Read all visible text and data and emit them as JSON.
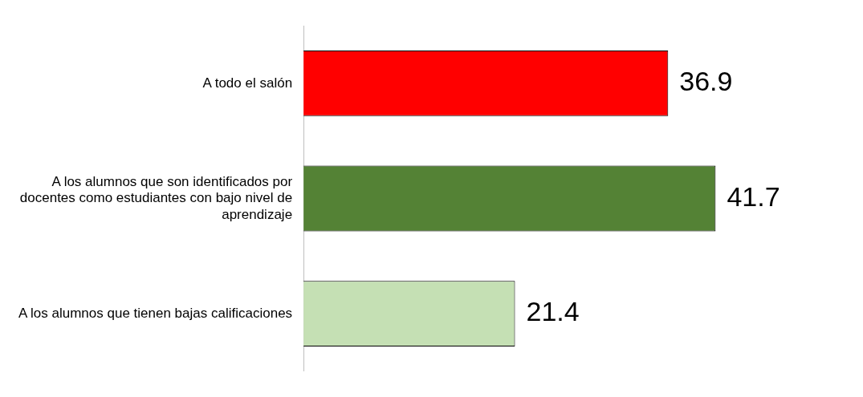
{
  "chart_data": {
    "type": "bar",
    "orientation": "horizontal",
    "categories": [
      "A todo el salón",
      "A los alumnos que son identificados por docentes como estudiantes con bajo nivel de aprendizaje",
      "A los alumnos que tienen bajas calificaciones"
    ],
    "values": [
      36.9,
      41.7,
      21.4
    ],
    "colors": [
      "#ff0000",
      "#548235",
      "#c5e0b4"
    ],
    "tick_labels": "y",
    "data_labels": true,
    "grid": false,
    "legend": false
  }
}
